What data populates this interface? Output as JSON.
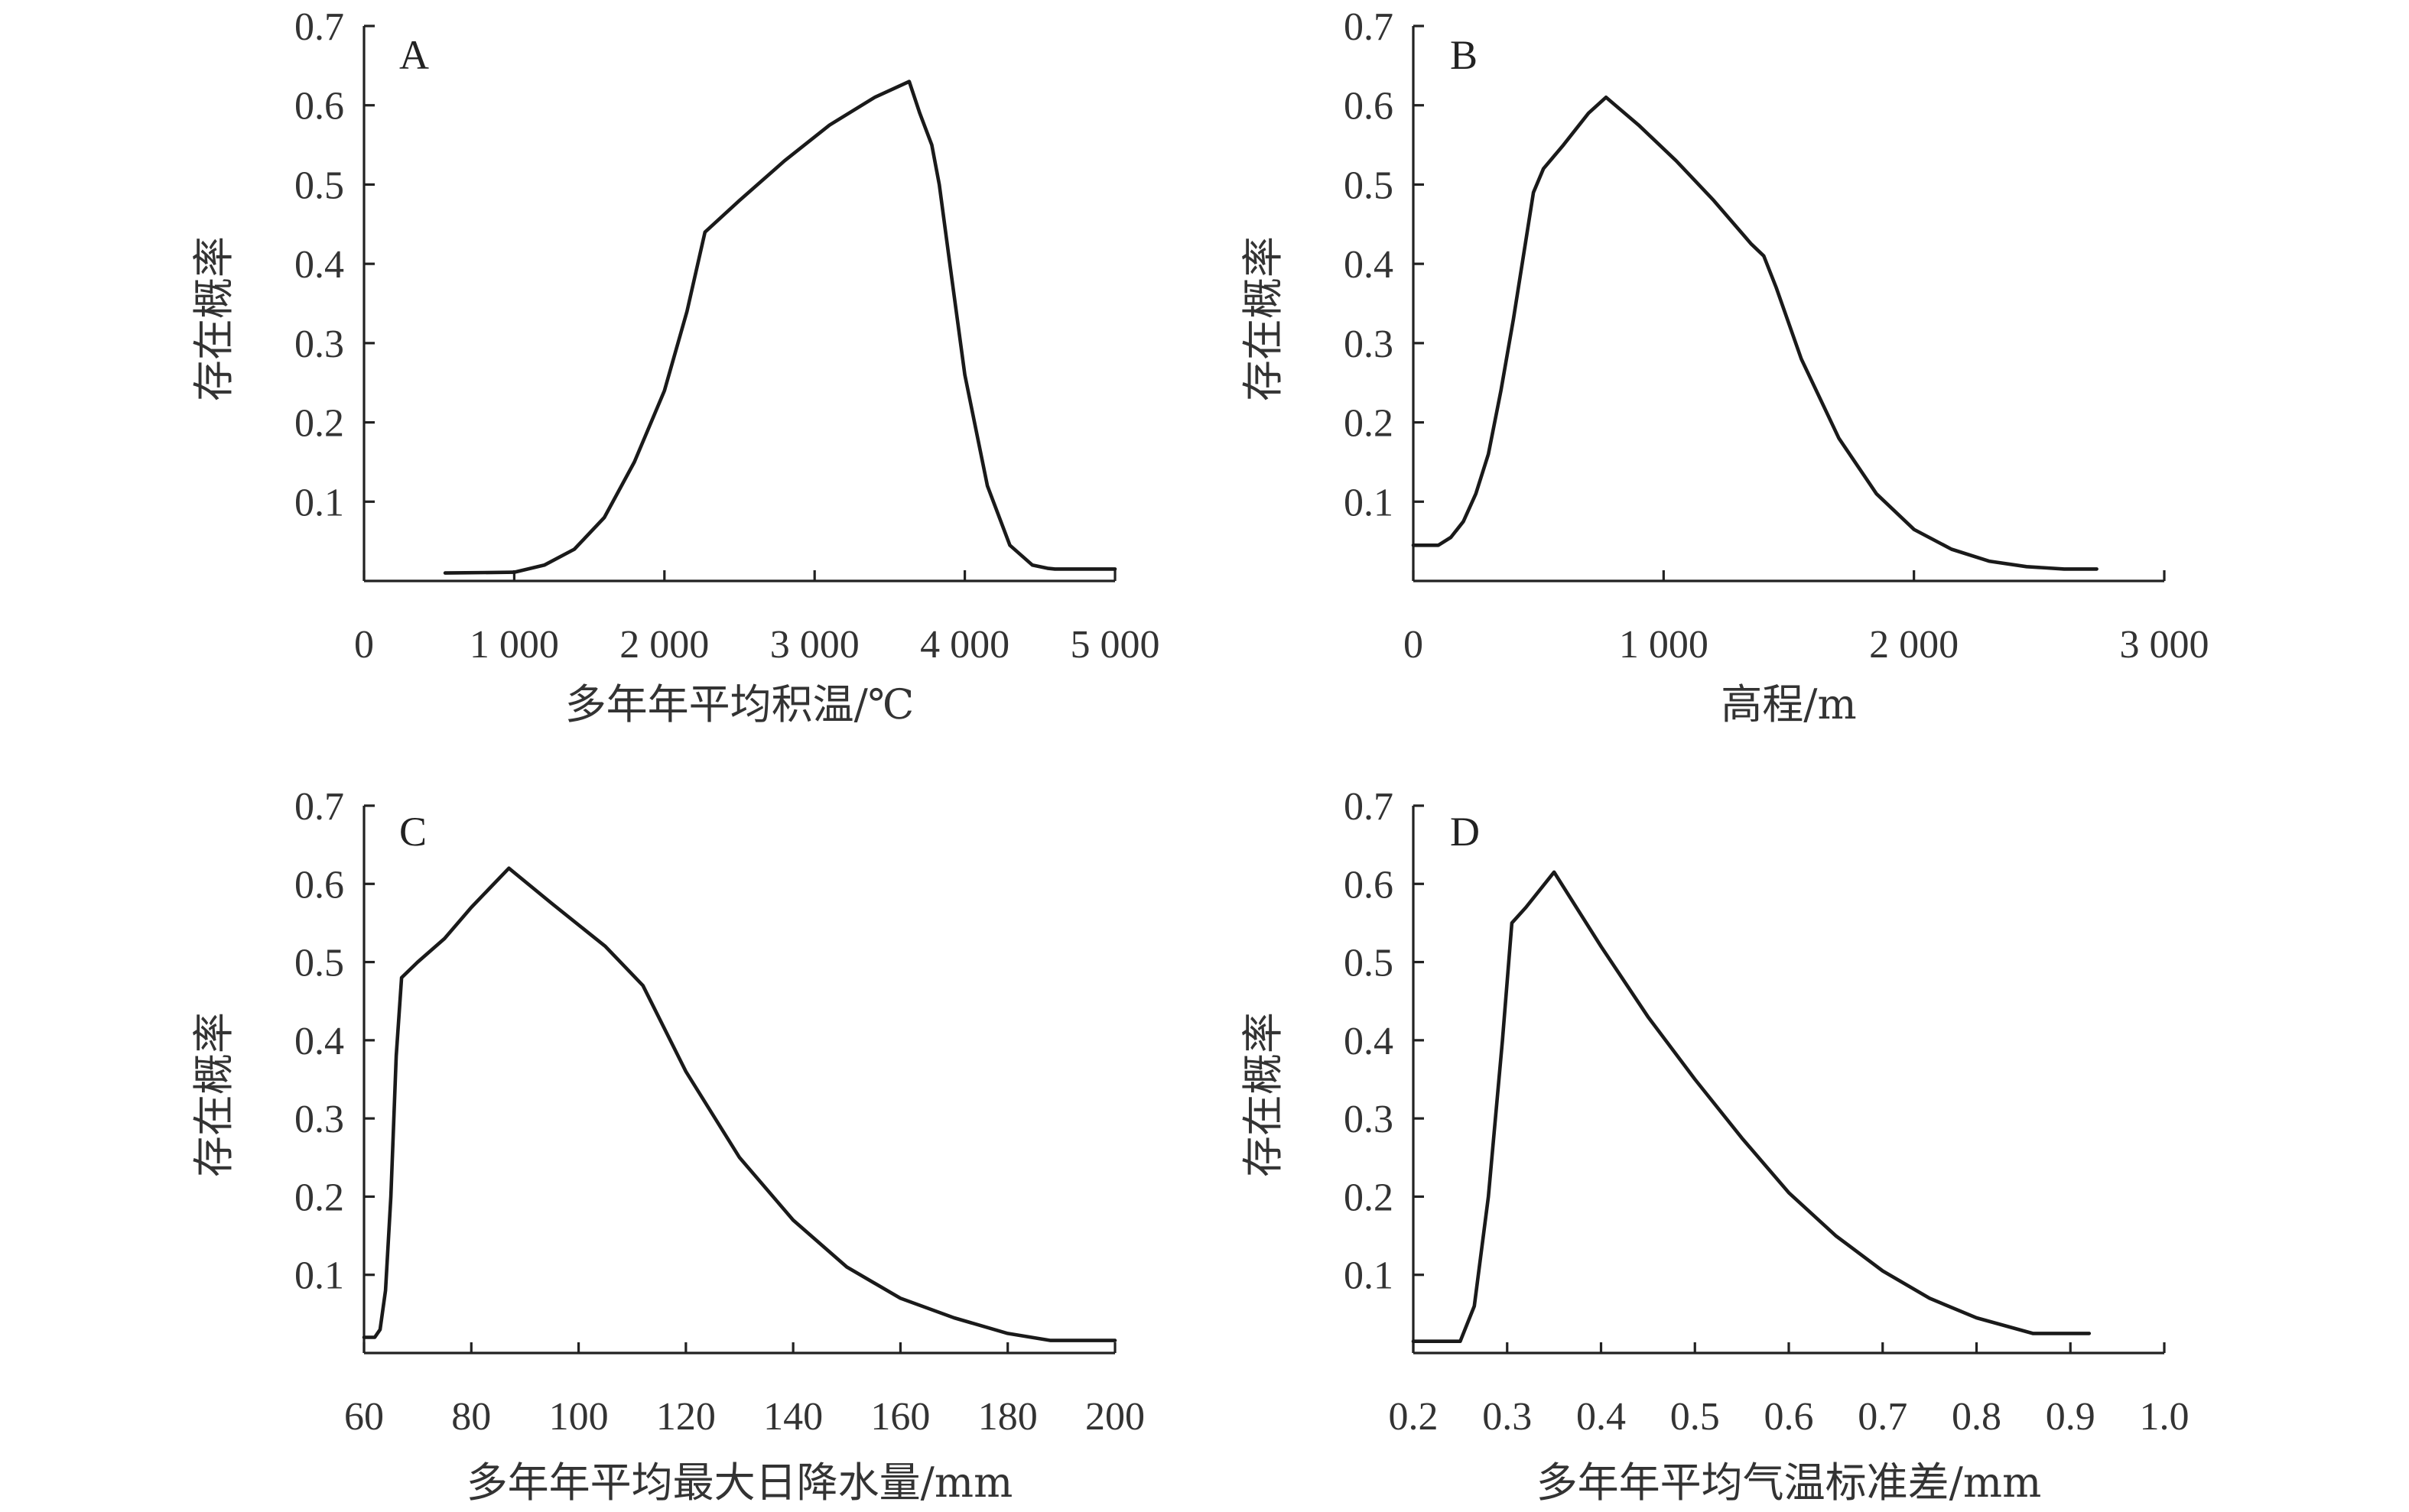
{
  "chart_data": [
    {
      "type": "line",
      "panel_label": "A",
      "xlabel": "多年年平均积温/℃",
      "ylabel": "存在概率",
      "xlim": [
        0,
        5000
      ],
      "ylim": [
        0,
        0.7
      ],
      "xticks": [
        0,
        1000,
        2000,
        3000,
        4000,
        5000
      ],
      "xtick_labels": [
        "0",
        "1 000",
        "2 000",
        "3 000",
        "4 000",
        "5 000"
      ],
      "yticks": [
        0.1,
        0.2,
        0.3,
        0.4,
        0.5,
        0.6,
        0.7
      ],
      "ytick_labels": [
        "0.1",
        "0.2",
        "0.3",
        "0.4",
        "0.5",
        "0.6",
        "0.7"
      ],
      "x": [
        540,
        1000,
        1200,
        1400,
        1600,
        1800,
        2000,
        2150,
        2270,
        2500,
        2800,
        3100,
        3400,
        3630,
        3700,
        3780,
        3830,
        3900,
        4000,
        4150,
        4300,
        4450,
        4550,
        4600,
        5000
      ],
      "y": [
        0.01,
        0.011,
        0.02,
        0.04,
        0.08,
        0.15,
        0.24,
        0.34,
        0.44,
        0.48,
        0.53,
        0.575,
        0.61,
        0.63,
        0.59,
        0.55,
        0.5,
        0.4,
        0.26,
        0.12,
        0.045,
        0.02,
        0.016,
        0.015,
        0.015
      ]
    },
    {
      "type": "line",
      "panel_label": "B",
      "xlabel": "高程/m",
      "ylabel": "存在概率",
      "xlim": [
        0,
        3000
      ],
      "ylim": [
        0,
        0.7
      ],
      "xticks": [
        0,
        1000,
        2000,
        3000
      ],
      "xtick_labels": [
        "0",
        "1 000",
        "2 000",
        "3 000"
      ],
      "yticks": [
        0.1,
        0.2,
        0.3,
        0.4,
        0.5,
        0.6,
        0.7
      ],
      "ytick_labels": [
        "0.1",
        "0.2",
        "0.3",
        "0.4",
        "0.5",
        "0.6",
        "0.7"
      ],
      "x": [
        0,
        100,
        150,
        200,
        250,
        300,
        350,
        400,
        450,
        480,
        520,
        600,
        700,
        770,
        900,
        1050,
        1200,
        1350,
        1400,
        1450,
        1550,
        1700,
        1850,
        2000,
        2150,
        2300,
        2450,
        2600,
        2730
      ],
      "y": [
        0.045,
        0.045,
        0.055,
        0.075,
        0.11,
        0.16,
        0.24,
        0.33,
        0.43,
        0.49,
        0.52,
        0.55,
        0.59,
        0.61,
        0.575,
        0.53,
        0.48,
        0.425,
        0.41,
        0.37,
        0.28,
        0.18,
        0.11,
        0.065,
        0.04,
        0.025,
        0.018,
        0.015,
        0.015
      ]
    },
    {
      "type": "line",
      "panel_label": "C",
      "xlabel": "多年年平均最大日降水量/mm",
      "ylabel": "存在概率",
      "xlim": [
        60,
        200
      ],
      "ylim": [
        0,
        0.7
      ],
      "xticks": [
        60,
        80,
        100,
        120,
        140,
        160,
        180,
        200
      ],
      "xtick_labels": [
        "60",
        "80",
        "100",
        "120",
        "140",
        "160",
        "180",
        "200"
      ],
      "yticks": [
        0.1,
        0.2,
        0.3,
        0.4,
        0.5,
        0.6,
        0.7
      ],
      "ytick_labels": [
        "0.1",
        "0.2",
        "0.3",
        "0.4",
        "0.5",
        "0.6",
        "0.7"
      ],
      "x": [
        60,
        62,
        63,
        64,
        65,
        66,
        67,
        70,
        75,
        80,
        87,
        95,
        105,
        112,
        120,
        130,
        140,
        150,
        160,
        170,
        180,
        188,
        200
      ],
      "y": [
        0.02,
        0.02,
        0.03,
        0.08,
        0.2,
        0.38,
        0.48,
        0.5,
        0.53,
        0.57,
        0.62,
        0.575,
        0.52,
        0.47,
        0.36,
        0.25,
        0.17,
        0.11,
        0.07,
        0.045,
        0.025,
        0.016,
        0.016
      ]
    },
    {
      "type": "line",
      "panel_label": "D",
      "xlabel": "多年年平均气温标准差/mm",
      "ylabel": "存在概率",
      "xlim": [
        0.2,
        1.0
      ],
      "ylim": [
        0,
        0.7
      ],
      "xticks": [
        0.2,
        0.3,
        0.4,
        0.5,
        0.6,
        0.7,
        0.8,
        0.9,
        1.0
      ],
      "xtick_labels": [
        "0.2",
        "0.3",
        "0.4",
        "0.5",
        "0.6",
        "0.7",
        "0.8",
        "0.9",
        "1.0"
      ],
      "yticks": [
        0.1,
        0.2,
        0.3,
        0.4,
        0.5,
        0.6,
        0.7
      ],
      "ytick_labels": [
        "0.1",
        "0.2",
        "0.3",
        "0.4",
        "0.5",
        "0.6",
        "0.7"
      ],
      "x": [
        0.2,
        0.25,
        0.265,
        0.28,
        0.295,
        0.305,
        0.32,
        0.35,
        0.4,
        0.45,
        0.5,
        0.55,
        0.6,
        0.65,
        0.7,
        0.75,
        0.8,
        0.86,
        0.92
      ],
      "y": [
        0.015,
        0.015,
        0.06,
        0.2,
        0.4,
        0.55,
        0.57,
        0.615,
        0.52,
        0.43,
        0.35,
        0.275,
        0.205,
        0.15,
        0.105,
        0.07,
        0.045,
        0.025,
        0.025
      ]
    }
  ]
}
